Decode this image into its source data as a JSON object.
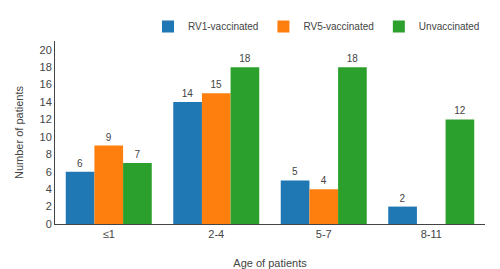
{
  "chart_data": {
    "type": "bar",
    "xlabel": "Age of patients",
    "ylabel": "Number of patients",
    "categories": [
      "≤1",
      "2-4",
      "5-7",
      "8-11"
    ],
    "series": [
      {
        "name": "RV1-vaccinated",
        "values": [
          6,
          14,
          5,
          2
        ]
      },
      {
        "name": "RV5-vaccinated",
        "values": [
          9,
          15,
          4,
          0
        ],
        "value_labels": [
          "9",
          "15",
          "4",
          null
        ]
      },
      {
        "name": "Unvaccinated",
        "values": [
          7,
          18,
          18,
          12
        ]
      }
    ],
    "ylim": [
      0,
      21
    ],
    "yticks": [
      0,
      2,
      4,
      6,
      8,
      10,
      12,
      14,
      16,
      18,
      20
    ],
    "grid": false,
    "legend": "upper right",
    "data_labels": true
  }
}
